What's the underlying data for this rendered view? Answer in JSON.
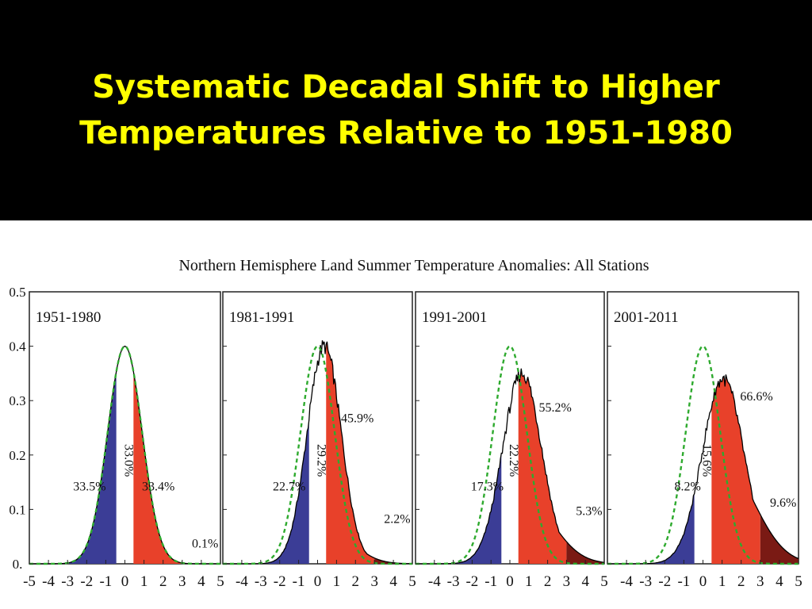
{
  "slide": {
    "title_lines": [
      "Systematic Decadal Shift to Higher",
      "Temperatures Relative to 1951-1980"
    ]
  },
  "figure": {
    "title": "Northern Hemisphere Land Summer Temperature Anomalies: All Stations",
    "colors": {
      "cold": "#3b3d96",
      "hot": "#e8412a",
      "extreme_hot": "#7a1a14",
      "reference": "#2eaa2e",
      "outline": "#000000"
    }
  },
  "chart_data": {
    "type": "area",
    "title": "Northern Hemisphere Land Summer Temperature Anomalies: All Stations",
    "ylim": [
      0,
      0.5
    ],
    "y_ticks": [
      "0.5",
      "0.4",
      "0.3",
      "0.2",
      "0.1",
      "0."
    ],
    "xlim": [
      -5,
      5
    ],
    "x_tick_labels_first": [
      "-5",
      "-4",
      "-3",
      "-2",
      "-1",
      "0",
      "1",
      "2",
      "3",
      "4",
      "5"
    ],
    "x_tick_labels_rest": [
      "-4",
      "-3",
      "-2",
      "-1",
      "0",
      "1",
      "2",
      "3",
      "4",
      "5"
    ],
    "reference_curve": "1951-1980 distribution (dashed green)",
    "grid": false,
    "panels": [
      {
        "period": "1951-1980",
        "mean_shift": 0.0,
        "spread": 1.0,
        "peak": 0.4,
        "cold_pct": "33.5%",
        "normal_pct": "33.0%",
        "hot_pct": "33.4%",
        "extreme_pct": "0.1%"
      },
      {
        "period": "1981-1991",
        "mean_shift": 0.35,
        "spread": 1.0,
        "peak": 0.4,
        "cold_pct": "22.7%",
        "normal_pct": "29.2%",
        "hot_pct": "45.9%",
        "extreme_pct": "2.2%"
      },
      {
        "period": "1991-2001",
        "mean_shift": 0.65,
        "spread": 1.15,
        "peak": 0.35,
        "cold_pct": "17.3%",
        "normal_pct": "22.2%",
        "hot_pct": "55.2%",
        "extreme_pct": "5.3%"
      },
      {
        "period": "2001-2011",
        "mean_shift": 1.05,
        "spread": 1.2,
        "peak": 0.34,
        "cold_pct": "8.2%",
        "normal_pct": "15.6%",
        "hot_pct": "66.6%",
        "extreme_pct": "9.6%"
      }
    ]
  }
}
